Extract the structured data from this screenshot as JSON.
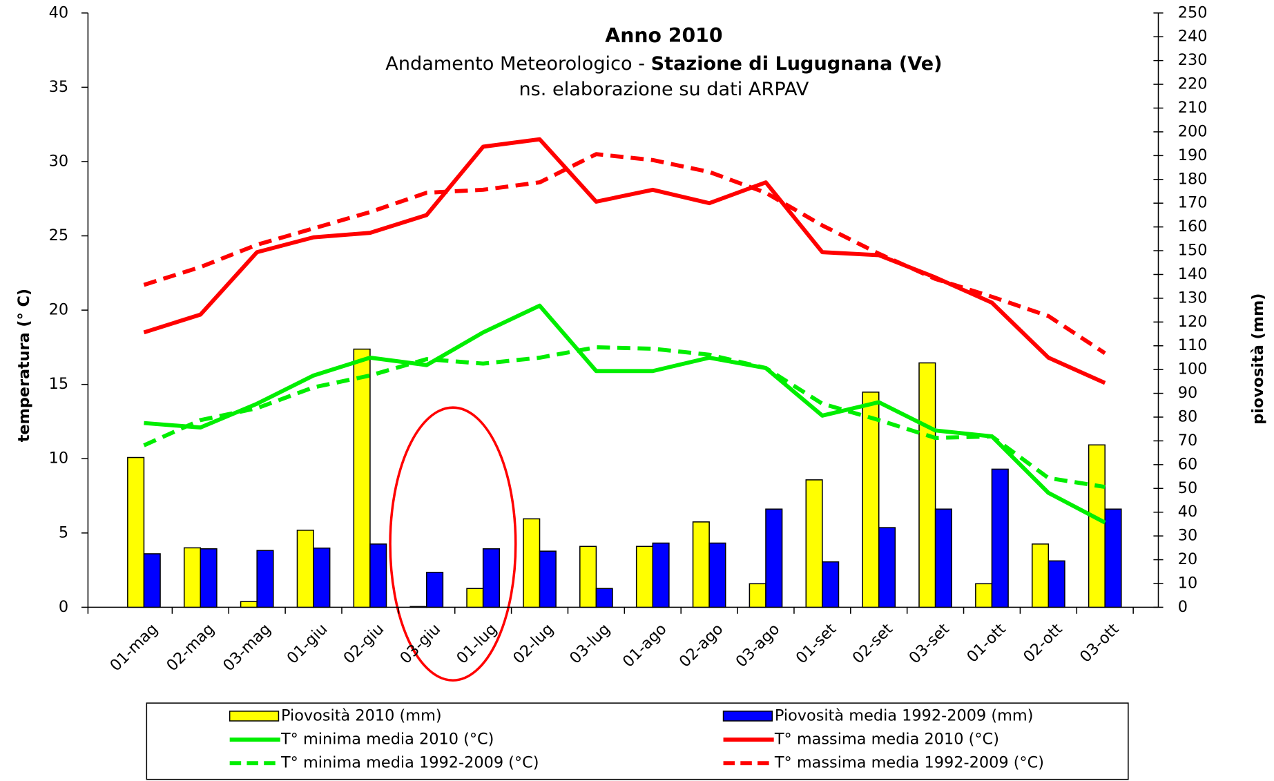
{
  "chart_data": {
    "type": "combo",
    "title": "Anno 2010",
    "subtitle": [
      "Andamento Meteorologico  -",
      "Stazione di Lugugnana (Ve)"
    ],
    "note": "ns. elaborazione su dati ARPAV",
    "ylabel": "temperatura (° C)",
    "y2label": "piovosità (mm)",
    "categories": [
      "01-mag",
      "02-mag",
      "03-mag",
      "01-giu",
      "02-giu",
      "03-giu",
      "01-lug",
      "02-lug",
      "03-lug",
      "01-ago",
      "02-ago",
      "03-ago",
      "01-set",
      "02-set",
      "03-set",
      "01-ott",
      "02-ott",
      "03-ott"
    ],
    "ylim": [
      0,
      40
    ],
    "yticks": [
      0,
      5,
      10,
      15,
      20,
      25,
      30,
      35,
      40
    ],
    "y2lim": [
      0,
      250
    ],
    "y2ticks": [
      0,
      10,
      20,
      30,
      40,
      50,
      60,
      70,
      80,
      90,
      100,
      110,
      120,
      130,
      140,
      150,
      160,
      170,
      180,
      190,
      200,
      210,
      220,
      230,
      240,
      250
    ],
    "series": [
      {
        "name": "Piovosità 2010 (mm)",
        "type": "bar",
        "axis": "y2",
        "color": "#ffff00",
        "values": [
          63,
          25,
          2.4,
          32.4,
          108.6,
          0.3,
          7.9,
          37.2,
          25.6,
          25.6,
          35.9,
          9.9,
          53.6,
          90.5,
          102.8,
          9.9,
          26.6,
          68.3
        ]
      },
      {
        "name": "Piovosità  media 1992-2009 (mm)",
        "type": "bar",
        "axis": "y2",
        "color": "#0000ff",
        "values": [
          22.5,
          24.6,
          23.9,
          24.9,
          26.6,
          14.7,
          24.6,
          23.6,
          7.9,
          27,
          27,
          41.3,
          19.1,
          33.5,
          41.3,
          58.1,
          19.5,
          41.3
        ]
      },
      {
        "name": "T° minima media 2010 (°C)",
        "type": "line",
        "color": "#00ee00",
        "dashed": false,
        "values": [
          12.4,
          12.1,
          13.7,
          15.6,
          16.8,
          16.3,
          18.5,
          20.3,
          15.9,
          15.9,
          16.8,
          16.1,
          12.9,
          13.8,
          11.9,
          11.5,
          7.7,
          5.7
        ]
      },
      {
        "name": "T° massima media 2010 (°C)",
        "type": "line",
        "color": "#ff0000",
        "dashed": false,
        "values": [
          18.5,
          19.7,
          23.9,
          24.9,
          25.2,
          26.4,
          31.0,
          31.5,
          27.3,
          28.1,
          27.2,
          28.6,
          23.9,
          23.7,
          22.2,
          20.5,
          16.8,
          15.1
        ]
      },
      {
        "name": "T° minima media 1992-2009 (°C)",
        "type": "line",
        "color": "#00ee00",
        "dashed": true,
        "values": [
          10.9,
          12.6,
          13.4,
          14.8,
          15.6,
          16.7,
          16.4,
          16.8,
          17.5,
          17.4,
          17.0,
          16.1,
          13.7,
          12.6,
          11.4,
          11.5,
          8.7,
          8.1
        ]
      },
      {
        "name": "T° massima media 1992-2009 (°C)",
        "type": "line",
        "color": "#ff0000",
        "dashed": true,
        "values": [
          21.7,
          22.9,
          24.4,
          25.5,
          26.6,
          27.9,
          28.1,
          28.6,
          30.5,
          30.1,
          29.3,
          27.9,
          25.7,
          23.8,
          22.1,
          20.9,
          19.6,
          17.1
        ]
      }
    ]
  }
}
